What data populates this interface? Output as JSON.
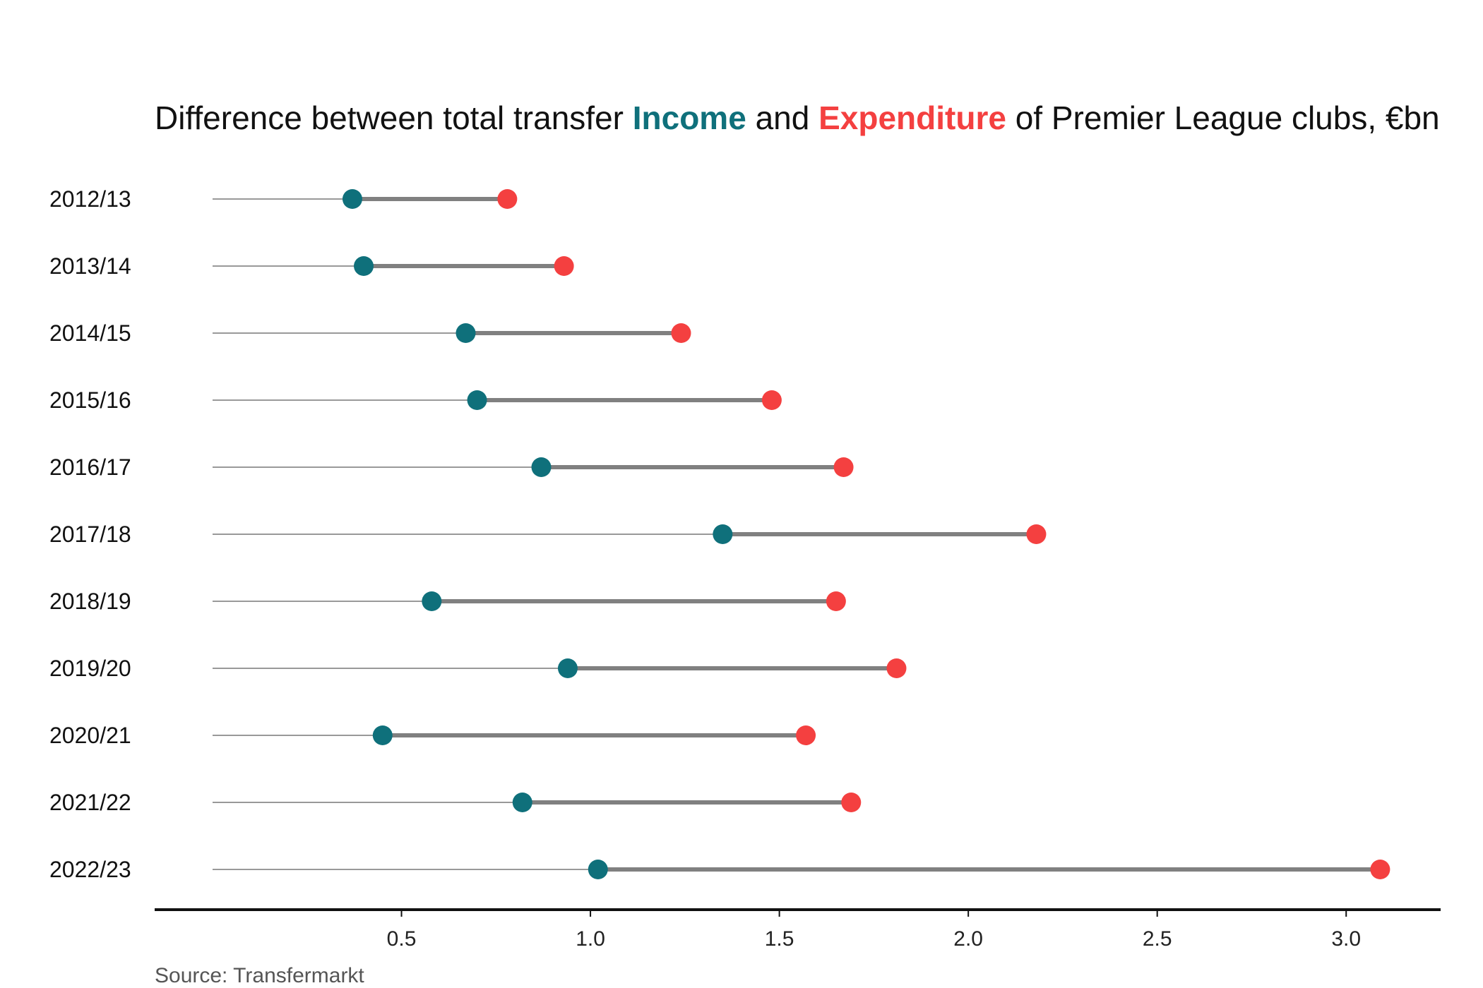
{
  "title": {
    "prefix": "Difference between total transfer ",
    "income_word": "Income",
    "middle": " and ",
    "expenditure_word": "Expenditure",
    "suffix": " of Premier League clubs, €bn"
  },
  "source": "Source: Transfermarkt",
  "colors": {
    "income": "#0f707b",
    "expenditure": "#f44040",
    "connector": "#808080",
    "guide": "#999999",
    "axis": "#111111"
  },
  "chart_data": {
    "type": "dumbbell",
    "categories": [
      "2012/13",
      "2013/14",
      "2014/15",
      "2015/16",
      "2016/17",
      "2017/18",
      "2018/19",
      "2019/20",
      "2020/21",
      "2021/22",
      "2022/23"
    ],
    "series": [
      {
        "name": "Income",
        "values": [
          0.37,
          0.4,
          0.67,
          0.7,
          0.87,
          1.35,
          0.58,
          0.94,
          0.45,
          0.82,
          1.02
        ]
      },
      {
        "name": "Expenditure",
        "values": [
          0.78,
          0.93,
          1.24,
          1.48,
          1.67,
          2.18,
          1.65,
          1.81,
          1.57,
          1.69,
          3.09
        ]
      }
    ],
    "xlim": [
      0,
      3.25
    ],
    "x_ticks": [
      "0.5",
      "1.0",
      "1.5",
      "2.0",
      "2.5",
      "3.0"
    ],
    "grid": false
  }
}
